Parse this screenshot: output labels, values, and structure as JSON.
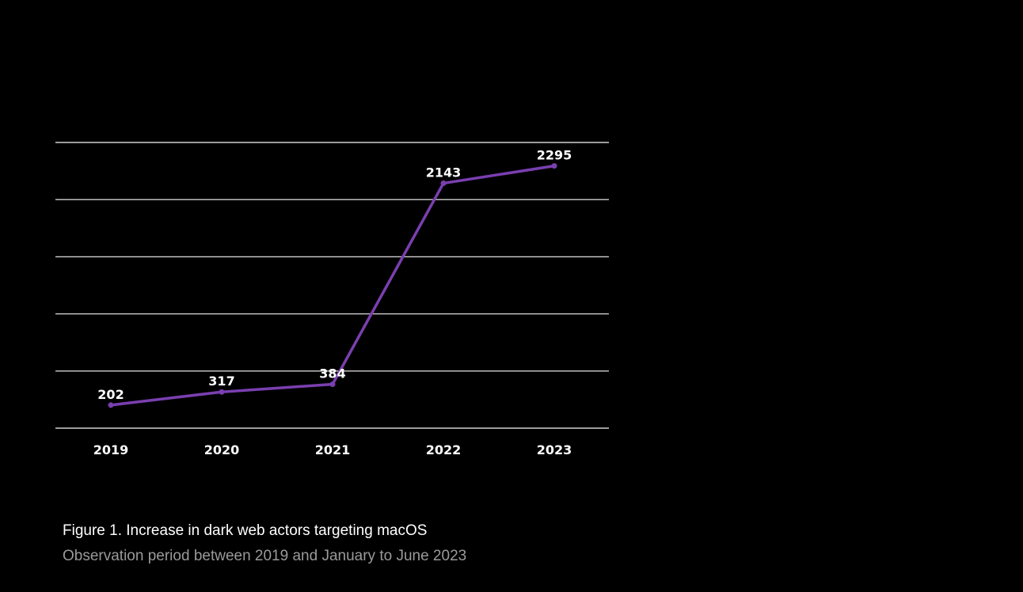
{
  "chart_data": {
    "type": "line",
    "categories": [
      "2019",
      "2020",
      "2021",
      "2022",
      "2023"
    ],
    "series": [
      {
        "values": [
          202,
          317,
          384,
          2143,
          2295
        ]
      }
    ],
    "data_labels": [
      "202",
      "317",
      "384",
      "2143",
      "2295"
    ],
    "ylim": [
      0,
      2500
    ],
    "y_gridlines": [
      0,
      500,
      1000,
      1500,
      2000,
      2500
    ],
    "y_tick_labels_shown": false,
    "grid": true,
    "line_color": "#7a3fb0",
    "grid_color": "#d0d0d0"
  },
  "caption": {
    "title": "Figure 1. Increase in dark web actors targeting macOS",
    "subtitle": "Observation period between 2019 and January to June 2023"
  }
}
